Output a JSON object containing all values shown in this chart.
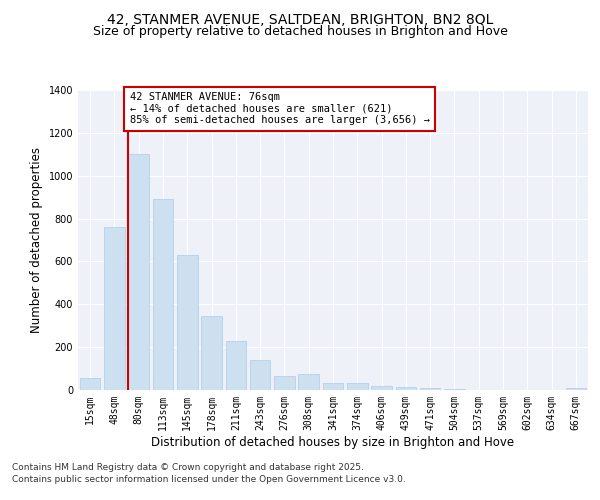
{
  "title_line1": "42, STANMER AVENUE, SALTDEAN, BRIGHTON, BN2 8QL",
  "title_line2": "Size of property relative to detached houses in Brighton and Hove",
  "xlabel": "Distribution of detached houses by size in Brighton and Hove",
  "ylabel": "Number of detached properties",
  "categories": [
    "15sqm",
    "48sqm",
    "80sqm",
    "113sqm",
    "145sqm",
    "178sqm",
    "211sqm",
    "243sqm",
    "276sqm",
    "308sqm",
    "341sqm",
    "374sqm",
    "406sqm",
    "439sqm",
    "471sqm",
    "504sqm",
    "537sqm",
    "569sqm",
    "602sqm",
    "634sqm",
    "667sqm"
  ],
  "values": [
    55,
    760,
    1100,
    890,
    630,
    345,
    230,
    140,
    65,
    75,
    35,
    35,
    20,
    13,
    8,
    3,
    1,
    0,
    0,
    0,
    8
  ],
  "bar_color": "#cce0f0",
  "bar_edgecolor": "#aaccee",
  "vline_color": "#cc0000",
  "annotation_text": "42 STANMER AVENUE: 76sqm\n← 14% of detached houses are smaller (621)\n85% of semi-detached houses are larger (3,656) →",
  "annotation_box_color": "#ffffff",
  "annotation_box_edgecolor": "#cc0000",
  "ylim": [
    0,
    1400
  ],
  "yticks": [
    0,
    200,
    400,
    600,
    800,
    1000,
    1200,
    1400
  ],
  "background_color": "#eef2f8",
  "grid_color": "#ffffff",
  "footer_line1": "Contains HM Land Registry data © Crown copyright and database right 2025.",
  "footer_line2": "Contains public sector information licensed under the Open Government Licence v3.0.",
  "title_fontsize": 10,
  "subtitle_fontsize": 9,
  "tick_fontsize": 7,
  "xlabel_fontsize": 8.5,
  "ylabel_fontsize": 8.5,
  "annotation_fontsize": 7.5,
  "footer_fontsize": 6.5
}
